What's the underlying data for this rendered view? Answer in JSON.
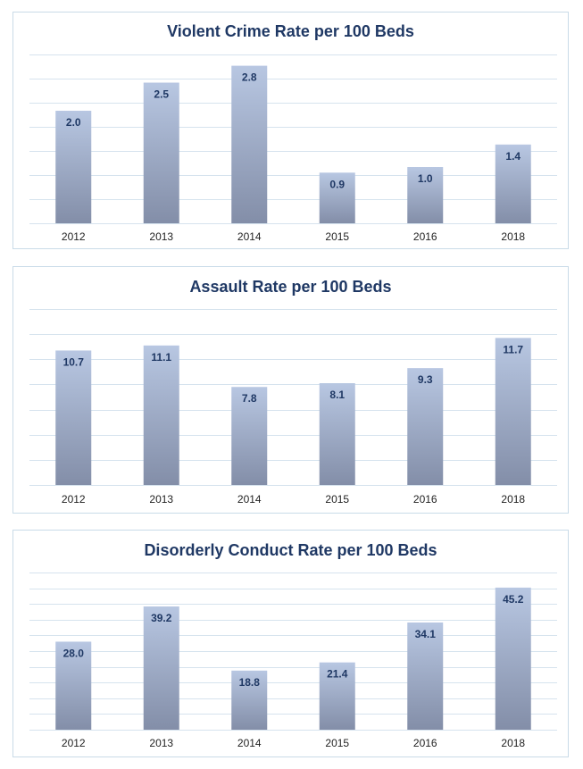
{
  "colors": {
    "bar_top": "#b8c7e2",
    "bar_bottom": "#838ea8",
    "grid": "#d6e3ee",
    "title": "#1f3864",
    "border": "#c9dbe8"
  },
  "chart_data": [
    {
      "type": "bar",
      "title": "Violent Crime Rate per 100 Beds",
      "categories": [
        "2012",
        "2013",
        "2014",
        "2015",
        "2016",
        "2018"
      ],
      "values": [
        2.0,
        2.5,
        2.8,
        0.9,
        1.0,
        1.4
      ],
      "value_labels": [
        "2.0",
        "2.5",
        "2.8",
        "0.9",
        "1.0",
        "1.4"
      ],
      "ylim": [
        0,
        3.0
      ],
      "grid": true,
      "gridlines": 7,
      "legend": "none"
    },
    {
      "type": "bar",
      "title": "Assault Rate per 100 Beds",
      "categories": [
        "2012",
        "2013",
        "2014",
        "2015",
        "2016",
        "2018"
      ],
      "values": [
        10.7,
        11.1,
        7.8,
        8.1,
        9.3,
        11.7
      ],
      "value_labels": [
        "10.7",
        "11.1",
        "7.8",
        "8.1",
        "9.3",
        "11.7"
      ],
      "ylim": [
        0,
        14
      ],
      "grid": true,
      "gridlines": 7,
      "legend": "none"
    },
    {
      "type": "bar",
      "title": "Disorderly Conduct Rate per 100 Beds",
      "categories": [
        "2012",
        "2013",
        "2014",
        "2015",
        "2016",
        "2018"
      ],
      "values": [
        28.0,
        39.2,
        18.8,
        21.4,
        34.1,
        45.2
      ],
      "value_labels": [
        "28.0",
        "39.2",
        "18.8",
        "21.4",
        "34.1",
        "45.2"
      ],
      "ylim": [
        0,
        50
      ],
      "grid": true,
      "gridlines": 10,
      "legend": "none"
    }
  ]
}
